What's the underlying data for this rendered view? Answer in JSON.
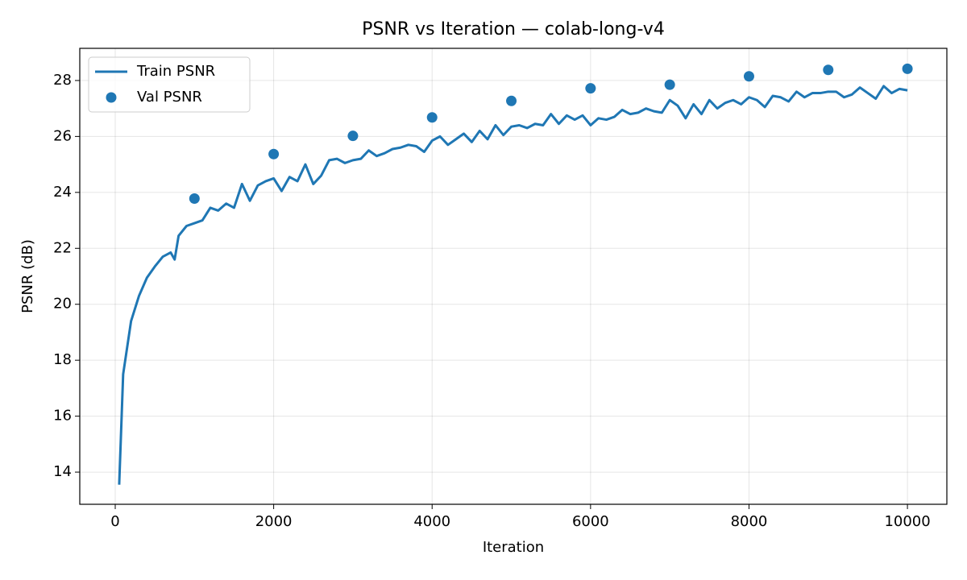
{
  "chart_data": {
    "type": "line",
    "title": "PSNR vs Iteration — colab-long-v4",
    "xlabel": "Iteration",
    "ylabel": "PSNR (dB)",
    "xlim": [
      -447.5,
      10497.5
    ],
    "xticks": [
      0,
      2000,
      4000,
      6000,
      8000,
      10000
    ],
    "ylim": [
      12.85,
      29.15
    ],
    "yticks": [
      14,
      16,
      18,
      20,
      22,
      24,
      26,
      28
    ],
    "grid": true,
    "legend": "upper left",
    "series": [
      {
        "name": "Train PSNR",
        "kind": "line",
        "color": "#1f77b4",
        "x": [
          50,
          100,
          200,
          300,
          400,
          500,
          600,
          700,
          750,
          800,
          900,
          1000,
          1100,
          1200,
          1300,
          1400,
          1500,
          1600,
          1700,
          1800,
          1900,
          2000,
          2100,
          2200,
          2300,
          2400,
          2500,
          2600,
          2700,
          2800,
          2900,
          3000,
          3100,
          3200,
          3300,
          3400,
          3500,
          3600,
          3700,
          3800,
          3900,
          4000,
          4100,
          4200,
          4300,
          4400,
          4500,
          4600,
          4700,
          4800,
          4900,
          5000,
          5100,
          5200,
          5300,
          5400,
          5500,
          5600,
          5700,
          5800,
          5900,
          6000,
          6100,
          6200,
          6300,
          6400,
          6500,
          6600,
          6700,
          6800,
          6900,
          7000,
          7100,
          7200,
          7300,
          7400,
          7500,
          7600,
          7700,
          7800,
          7900,
          8000,
          8100,
          8200,
          8300,
          8400,
          8500,
          8600,
          8700,
          8800,
          8900,
          9000,
          9100,
          9200,
          9300,
          9400,
          9500,
          9600,
          9700,
          9800,
          9900,
          10000
        ],
        "values": [
          13.55,
          17.5,
          19.4,
          20.3,
          20.95,
          21.35,
          21.7,
          21.85,
          21.6,
          22.45,
          22.8,
          22.9,
          23.0,
          23.45,
          23.35,
          23.6,
          23.45,
          24.3,
          23.7,
          24.25,
          24.4,
          24.5,
          24.05,
          24.55,
          24.4,
          25.0,
          24.3,
          24.6,
          25.15,
          25.2,
          25.05,
          25.15,
          25.2,
          25.5,
          25.3,
          25.4,
          25.55,
          25.6,
          25.7,
          25.65,
          25.45,
          25.85,
          26.0,
          25.7,
          25.9,
          26.1,
          25.8,
          26.2,
          25.9,
          26.4,
          26.05,
          26.35,
          26.4,
          26.3,
          26.45,
          26.4,
          26.8,
          26.45,
          26.75,
          26.6,
          26.75,
          26.4,
          26.65,
          26.6,
          26.7,
          26.95,
          26.8,
          26.85,
          27.0,
          26.9,
          26.85,
          27.3,
          27.1,
          26.65,
          27.15,
          26.8,
          27.3,
          27.0,
          27.2,
          27.3,
          27.15,
          27.4,
          27.3,
          27.05,
          27.45,
          27.4,
          27.25,
          27.6,
          27.4,
          27.55,
          27.55,
          27.6,
          27.6,
          27.4,
          27.5,
          27.75,
          27.55,
          27.35,
          27.8,
          27.55,
          27.7,
          27.65
        ]
      },
      {
        "name": "Val PSNR",
        "kind": "scatter",
        "color": "#1f77b4",
        "x": [
          1000,
          2000,
          3000,
          4000,
          5000,
          6000,
          7000,
          8000,
          9000,
          10000
        ],
        "values": [
          23.78,
          25.37,
          26.02,
          26.68,
          27.27,
          27.72,
          27.85,
          28.15,
          28.38,
          28.42
        ]
      }
    ]
  }
}
